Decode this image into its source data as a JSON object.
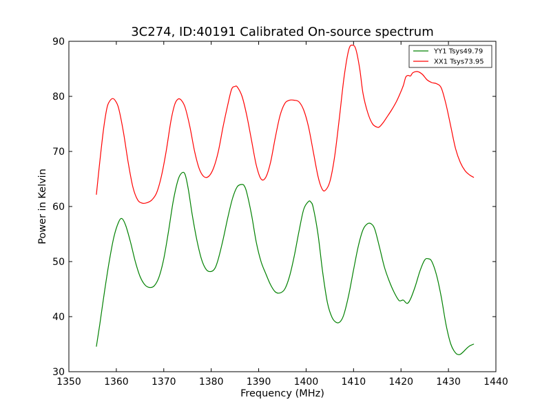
{
  "chart_data": {
    "type": "line",
    "title": "3C274, ID:40191 Calibrated On-source spectrum",
    "xlabel": "Frequency (MHz)",
    "ylabel": "Power in Kelvin",
    "xlim": [
      1350,
      1440
    ],
    "ylim": [
      30,
      90
    ],
    "xticks": [
      1350,
      1360,
      1370,
      1380,
      1390,
      1400,
      1410,
      1420,
      1430,
      1440
    ],
    "yticks": [
      30,
      40,
      50,
      60,
      70,
      80,
      90
    ],
    "grid": false,
    "legend_position": "top-right",
    "series": [
      {
        "name": "YY1 Tsys49.79",
        "color": "#008000",
        "x": [
          1355.8,
          1356.5,
          1357.5,
          1358.5,
          1359.5,
          1360.5,
          1361.2,
          1362.0,
          1363.0,
          1364.0,
          1365.0,
          1366.0,
          1367.0,
          1368.0,
          1369.0,
          1370.0,
          1371.0,
          1372.0,
          1373.0,
          1373.8,
          1374.5,
          1375.2,
          1376.0,
          1377.0,
          1378.0,
          1379.0,
          1380.0,
          1380.8,
          1381.5,
          1382.5,
          1383.5,
          1384.5,
          1385.5,
          1386.5,
          1387.0,
          1387.5,
          1388.5,
          1389.5,
          1390.5,
          1391.5,
          1392.5,
          1393.5,
          1394.5,
          1395.5,
          1396.5,
          1397.5,
          1398.5,
          1399.5,
          1400.5,
          1401.0,
          1401.5,
          1402.5,
          1403.5,
          1404.5,
          1405.5,
          1406.5,
          1407.3,
          1408.0,
          1409.0,
          1410.0,
          1411.0,
          1412.0,
          1413.0,
          1413.8,
          1414.5,
          1415.5,
          1416.5,
          1417.5,
          1418.5,
          1419.5,
          1420.0,
          1420.5,
          1421.3,
          1422.0,
          1423.0,
          1424.0,
          1425.0,
          1425.8,
          1426.5,
          1427.5,
          1428.5,
          1429.5,
          1430.5,
          1431.5,
          1432.3,
          1433.0,
          1433.8,
          1434.5,
          1435.3
        ],
        "values": [
          34.6,
          38.5,
          44.5,
          50.0,
          54.5,
          57.2,
          57.8,
          56.5,
          53.5,
          50.0,
          47.3,
          45.8,
          45.3,
          45.6,
          47.2,
          50.5,
          55.5,
          61.0,
          64.8,
          66.1,
          65.8,
          63.0,
          58.5,
          53.8,
          50.3,
          48.5,
          48.2,
          48.8,
          50.5,
          54.0,
          58.0,
          61.5,
          63.6,
          64.0,
          63.7,
          62.5,
          58.5,
          53.5,
          50.0,
          47.8,
          45.8,
          44.5,
          44.3,
          45.0,
          47.3,
          51.0,
          55.5,
          59.5,
          60.9,
          60.8,
          59.8,
          55.0,
          48.0,
          42.5,
          39.8,
          38.9,
          39.2,
          40.5,
          44.0,
          48.5,
          52.8,
          55.8,
          56.9,
          56.8,
          55.8,
          52.5,
          49.0,
          46.5,
          44.5,
          43.0,
          42.9,
          43.0,
          42.4,
          43.2,
          45.5,
          48.3,
          50.3,
          50.5,
          50.0,
          47.5,
          43.5,
          38.5,
          35.0,
          33.4,
          33.1,
          33.5,
          34.2,
          34.7,
          35.0
        ]
      },
      {
        "name": "XX1 Tsys73.95",
        "color": "#ff0000",
        "x": [
          1355.8,
          1356.5,
          1357.3,
          1358.0,
          1358.5,
          1359.2,
          1359.8,
          1360.5,
          1361.5,
          1362.5,
          1363.5,
          1364.5,
          1365.5,
          1366.5,
          1367.5,
          1368.5,
          1369.5,
          1370.5,
          1371.5,
          1372.3,
          1373.0,
          1373.7,
          1374.5,
          1375.5,
          1376.5,
          1377.5,
          1378.5,
          1379.5,
          1380.5,
          1381.5,
          1382.5,
          1383.5,
          1384.3,
          1385.0,
          1385.5,
          1386.5,
          1387.5,
          1388.5,
          1389.5,
          1390.5,
          1391.5,
          1392.5,
          1393.5,
          1394.5,
          1395.5,
          1396.5,
          1397.5,
          1398.5,
          1399.5,
          1400.5,
          1401.5,
          1402.5,
          1403.3,
          1404.0,
          1405.0,
          1406.0,
          1407.0,
          1408.0,
          1409.0,
          1409.8,
          1410.5,
          1411.3,
          1412.0,
          1413.0,
          1414.0,
          1415.0,
          1415.5,
          1416.3,
          1417.0,
          1418.0,
          1419.0,
          1419.8,
          1420.5,
          1421.0,
          1421.5,
          1422.0,
          1422.5,
          1423.5,
          1424.5,
          1425.5,
          1426.5,
          1427.5,
          1428.5,
          1429.5,
          1430.5,
          1431.5,
          1432.5,
          1433.5,
          1434.5,
          1435.3
        ],
        "values": [
          62.2,
          68.0,
          74.0,
          77.8,
          79.0,
          79.6,
          79.2,
          77.8,
          73.5,
          68.0,
          63.5,
          61.2,
          60.6,
          60.7,
          61.2,
          62.5,
          65.5,
          70.0,
          75.5,
          78.5,
          79.5,
          79.3,
          78.0,
          74.5,
          70.0,
          66.8,
          65.4,
          65.5,
          67.0,
          70.0,
          74.5,
          78.5,
          81.3,
          81.8,
          81.7,
          80.0,
          76.5,
          72.0,
          67.5,
          65.0,
          65.3,
          68.0,
          72.5,
          76.5,
          78.7,
          79.3,
          79.3,
          79.0,
          77.5,
          74.5,
          70.0,
          65.5,
          63.3,
          62.9,
          64.5,
          69.0,
          76.0,
          83.5,
          88.5,
          89.3,
          88.5,
          85.0,
          80.5,
          77.0,
          75.0,
          74.4,
          74.5,
          75.3,
          76.2,
          77.5,
          79.0,
          80.5,
          82.0,
          83.5,
          83.8,
          83.7,
          84.3,
          84.5,
          84.0,
          83.0,
          82.5,
          82.3,
          81.5,
          78.5,
          74.5,
          70.5,
          68.0,
          66.5,
          65.7,
          65.3
        ]
      }
    ]
  }
}
